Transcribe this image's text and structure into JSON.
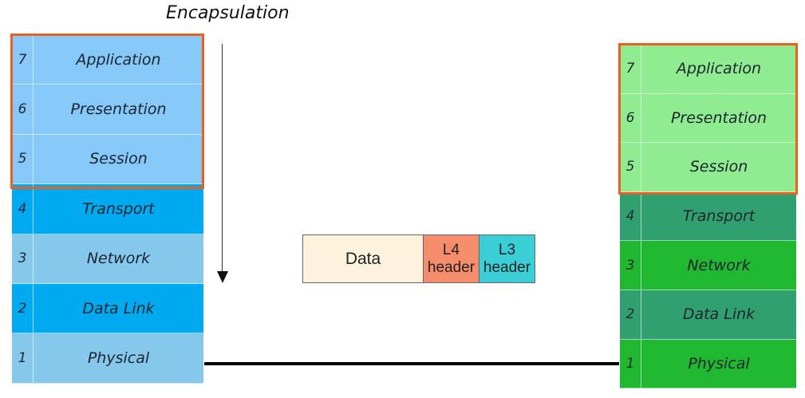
{
  "title": "Encapsulation",
  "left_stack": [
    {
      "num": "7",
      "name": "Application",
      "color": "#86c8f8"
    },
    {
      "num": "6",
      "name": "Presentation",
      "color": "#86c8f8"
    },
    {
      "num": "5",
      "name": "Session",
      "color": "#86c8f8"
    },
    {
      "num": "4",
      "name": "Transport",
      "color": "#00aaf0"
    },
    {
      "num": "3",
      "name": "Network",
      "color": "#86c8ec"
    },
    {
      "num": "2",
      "name": "Data Link",
      "color": "#00aaf0"
    },
    {
      "num": "1",
      "name": "Physical",
      "color": "#86c8ec"
    }
  ],
  "right_stack": [
    {
      "num": "7",
      "name": "Application",
      "color": "#90ec90"
    },
    {
      "num": "6",
      "name": "Presentation",
      "color": "#90ec90"
    },
    {
      "num": "5",
      "name": "Session",
      "color": "#90ec90"
    },
    {
      "num": "4",
      "name": "Transport",
      "color": "#30a070"
    },
    {
      "num": "3",
      "name": "Network",
      "color": "#20b830"
    },
    {
      "num": "2",
      "name": "Data Link",
      "color": "#30a070"
    },
    {
      "num": "1",
      "name": "Physical",
      "color": "#20b830"
    }
  ],
  "packet": {
    "data": {
      "label": "Data",
      "color": "#fdf3dc"
    },
    "l4": {
      "line1": "L4",
      "line2": "header",
      "color": "#f58c6c"
    },
    "l3": {
      "line1": "L3",
      "line2": "header",
      "color": "#3acfd6"
    }
  },
  "highlight_color": "#ee5f1f"
}
